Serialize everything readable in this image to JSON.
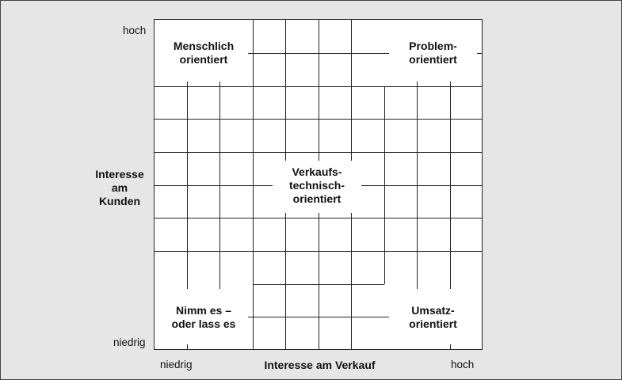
{
  "diagram": {
    "quadrants": {
      "top_left": [
        "Menschlich",
        "orientiert"
      ],
      "top_right": [
        "Problem-",
        "orientiert"
      ],
      "center": [
        "Verkaufs-",
        "technisch-",
        "orientiert"
      ],
      "bottom_left": [
        "Nimm es –",
        "oder lass es"
      ],
      "bottom_right": [
        "Umsatz-",
        "orientiert"
      ]
    },
    "y_axis": {
      "title": [
        "Interesse",
        "am",
        "Kunden"
      ],
      "high": "hoch",
      "low": "niedrig"
    },
    "x_axis": {
      "title": "Interesse am Verkauf",
      "low": "niedrig",
      "high": "hoch"
    }
  },
  "colors": {
    "background": "#e6e6e6",
    "grid_fill": "#ffffff",
    "lines": "#222222"
  }
}
